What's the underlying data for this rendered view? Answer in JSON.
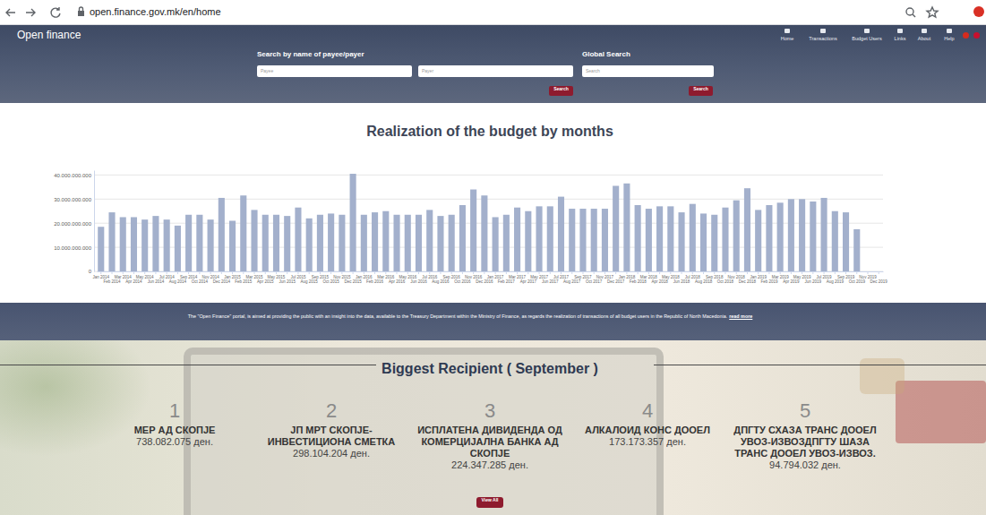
{
  "browser": {
    "url": "open.finance.gov.mk/en/home"
  },
  "header": {
    "brand": "Open finance",
    "nav": [
      "Home",
      "Transactions",
      "Budget Users",
      "Links",
      "About",
      "Help"
    ]
  },
  "search": {
    "payee_title": "Search by name of payee/payer",
    "payee_placeholder": "Payee",
    "payer_placeholder": "Payer",
    "payee_button": "Search",
    "global_title": "Global Search",
    "global_placeholder": "Search",
    "global_button": "Search"
  },
  "chart_data": {
    "type": "bar",
    "title": "Realization of the budget by months",
    "categories": [
      "Jan 2014",
      "Feb 2014",
      "Mar 2014",
      "Apr 2014",
      "May 2014",
      "Jun 2014",
      "Jul 2014",
      "Aug 2014",
      "Sep 2014",
      "Oct 2014",
      "Nov 2014",
      "Dec 2014",
      "Jan 2015",
      "Feb 2015",
      "Mar 2015",
      "Apr 2015",
      "May 2015",
      "Jun 2015",
      "Jul 2015",
      "Aug 2015",
      "Sep 2015",
      "Oct 2015",
      "Nov 2015",
      "Dec 2015",
      "Jan 2016",
      "Feb 2016",
      "Mar 2016",
      "Apr 2016",
      "May 2016",
      "Jun 2016",
      "Jul 2016",
      "Aug 2016",
      "Sep 2016",
      "Oct 2016",
      "Nov 2016",
      "Dec 2016",
      "Jan 2017",
      "Feb 2017",
      "Mar 2017",
      "Apr 2017",
      "May 2017",
      "Jun 2017",
      "Jul 2017",
      "Aug 2017",
      "Sep 2017",
      "Oct 2017",
      "Nov 2017",
      "Dec 2017",
      "Jan 2018",
      "Feb 2018",
      "Mar 2018",
      "Apr 2018",
      "May 2018",
      "Jun 2018",
      "Jul 2018",
      "Aug 2018",
      "Sep 2018",
      "Oct 2018",
      "Nov 2018",
      "Dec 2018",
      "Jan 2019",
      "Feb 2019",
      "Mar 2019",
      "Apr 2019",
      "May 2019",
      "Jun 2019",
      "Jul 2019",
      "Aug 2019",
      "Sep 2019",
      "Oct 2019",
      "Nov 2019",
      "Dec 2019"
    ],
    "values": [
      18500000000,
      24500000000,
      22500000000,
      22500000000,
      21500000000,
      23000000000,
      21500000000,
      19000000000,
      23500000000,
      23500000000,
      21500000000,
      30500000000,
      21000000000,
      31500000000,
      25500000000,
      23500000000,
      23500000000,
      23000000000,
      26500000000,
      22000000000,
      23500000000,
      24000000000,
      23500000000,
      40500000000,
      23500000000,
      24500000000,
      25000000000,
      23500000000,
      23500000000,
      23500000000,
      25500000000,
      23000000000,
      23500000000,
      27500000000,
      34000000000,
      31500000000,
      22500000000,
      23500000000,
      26500000000,
      25000000000,
      27000000000,
      27000000000,
      31000000000,
      26000000000,
      26000000000,
      26000000000,
      26000000000,
      35500000000,
      36500000000,
      27500000000,
      26000000000,
      27000000000,
      27000000000,
      24500000000,
      28000000000,
      24000000000,
      23500000000,
      26500000000,
      29500000000,
      34500000000,
      25500000000,
      27500000000,
      28500000000,
      30000000000,
      30000000000,
      29000000000,
      30500000000,
      25000000000,
      24500000000,
      17500000000,
      null,
      null
    ],
    "color": "#a3b0cc",
    "ylim": [
      0,
      42000000000
    ],
    "yticks": [
      0,
      {
        "value": 10000000000,
        "label": "10.000.000.000"
      },
      {
        "value": 20000000000,
        "label": "20.000.000.000"
      },
      {
        "value": 30000000000,
        "label": "30.000.000.000"
      },
      {
        "value": 40000000000,
        "label": "40.000.000.000"
      }
    ],
    "grid": true
  },
  "intro": {
    "text": "The \"Open Finance\" portal, is aimed at providing the public with an insight into the data, available to the Treasury Department within the Ministry of Finance, as regards the realization of transactions of all budget users in the Republic of North Macedonia.",
    "link": "read more"
  },
  "recipients": {
    "title": "Biggest Recipient ( September )",
    "items": [
      {
        "rank": 1,
        "name": "МЕР АД СКОПЈЕ",
        "amount": "738.082.075 ден."
      },
      {
        "rank": 2,
        "name": "ЈП МРТ СКОПЈЕ-ИНВЕСТИЦИОНА СМЕТКА",
        "amount": "298.104.204 ден."
      },
      {
        "rank": 3,
        "name": "ИСПЛАТЕНА ДИВИДЕНДА ОД КОМЕРЦИЈАЛНА БАНКА АД СКОПЈЕ",
        "amount": "224.347.285 ден."
      },
      {
        "rank": 4,
        "name": "АЛКАЛОИД КОНС ДООЕЛ",
        "amount": "173.173.357 ден."
      },
      {
        "rank": 5,
        "name": "ДПГТУ СХАЗА ТРАНС ДООЕЛ УВОЗ-ИЗВОЗДПГТУ ШАЗА ТРАНС ДООЕЛ УВОЗ-ИЗВОЗ.",
        "amount": "94.794.032 ден."
      }
    ],
    "button": "View All"
  }
}
